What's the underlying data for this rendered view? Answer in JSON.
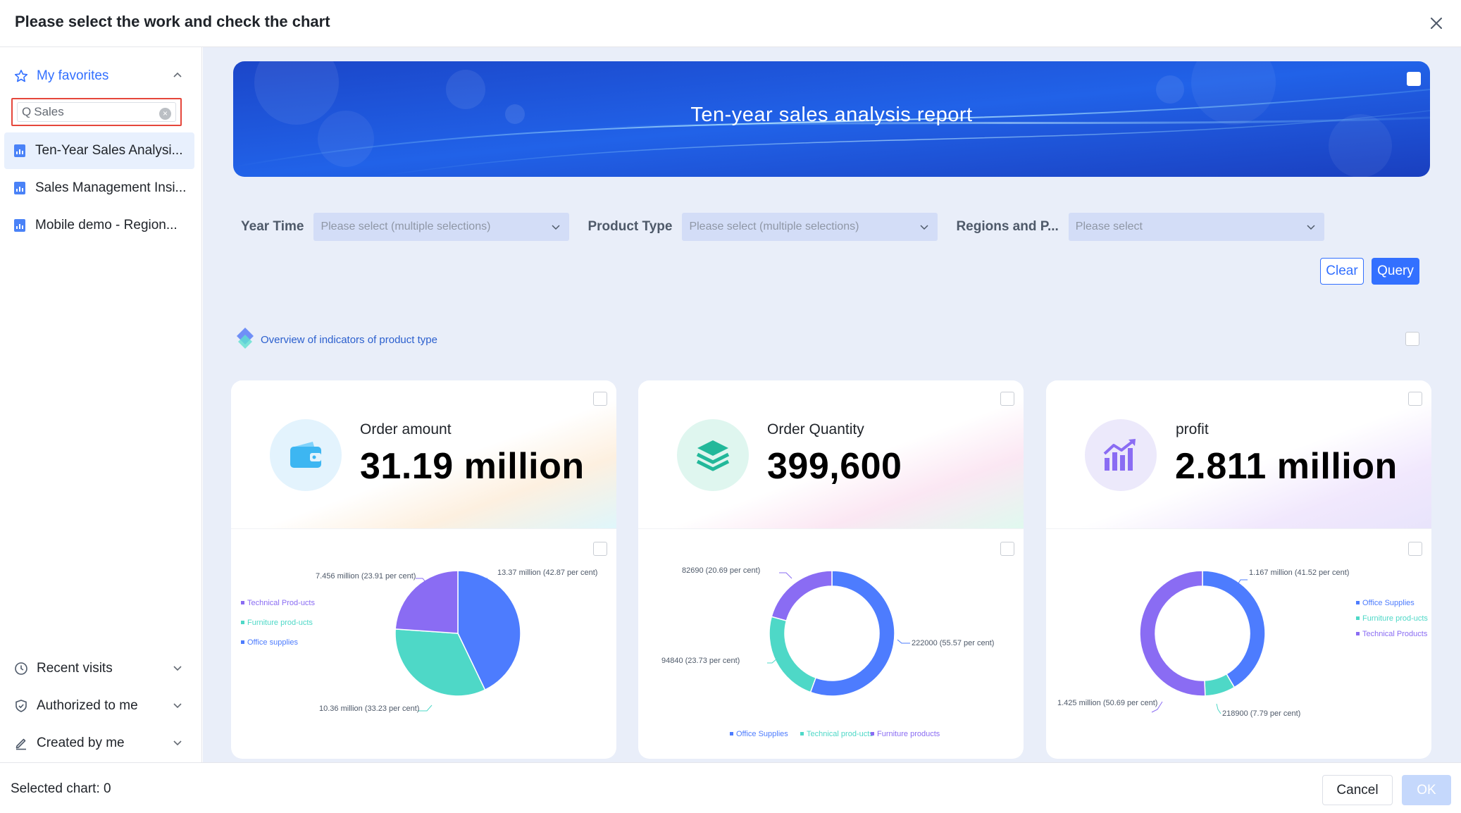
{
  "dialog": {
    "title": "Please select the work and check the chart",
    "close_icon": "close-icon"
  },
  "sidebar": {
    "favorites_label": "My favorites",
    "search": {
      "value": "Sales",
      "prefix": "Q"
    },
    "works": [
      {
        "label": "Ten-Year Sales Analysi...",
        "active": true
      },
      {
        "label": "Sales Management Insi...",
        "active": false
      },
      {
        "label": "Mobile demo - Region...",
        "active": false
      }
    ],
    "nav": [
      {
        "label": "Recent visits",
        "icon": "clock-icon"
      },
      {
        "label": "Authorized to me",
        "icon": "shield-icon"
      },
      {
        "label": "Created by me",
        "icon": "pen-icon"
      }
    ]
  },
  "banner": {
    "title": "Ten-year sales analysis report"
  },
  "filters": [
    {
      "label": "Year Time",
      "placeholder": "Please select (multiple selections)"
    },
    {
      "label": "Product Type",
      "placeholder": "Please select (multiple selections)"
    },
    {
      "label": "Regions and P...",
      "placeholder": "Please select"
    }
  ],
  "buttons": {
    "clear": "Clear",
    "query": "Query"
  },
  "section": {
    "title": "Overview of indicators of product type"
  },
  "cards": [
    {
      "label": "Order amount",
      "value": "31.19 million",
      "icon": "wallet-icon",
      "chart_data": {
        "type": "pie",
        "slices": [
          {
            "name": "Office supplies",
            "value": 13.37,
            "label": "13.37 million (42.87 per cent)",
            "color": "#4d7cfe"
          },
          {
            "name": "Furniture products",
            "value": 10.36,
            "label": "10.36 million (33.23 per cent)",
            "color": "#4ed8c7"
          },
          {
            "name": "Technical Products",
            "value": 7.456,
            "label": "7.456 million (23.91 per cent)",
            "color": "#8a6cf3"
          }
        ],
        "legend": [
          "Technical Prod-ucts",
          "Furniture prod-ucts",
          "Office supplies"
        ],
        "legend_position": "left"
      }
    },
    {
      "label": "Order Quantity",
      "value": "399,600",
      "icon": "layers-icon",
      "chart_data": {
        "type": "pie",
        "slices": [
          {
            "name": "Office Supplies",
            "value": 222000,
            "label": "222000 (55.57 per cent)",
            "color": "#4d7cfe"
          },
          {
            "name": "Technical products",
            "value": 94840,
            "label": "94840 (23.73 per cent)",
            "color": "#4ed8c7"
          },
          {
            "name": "Furniture products",
            "value": 82690,
            "label": "82690 (20.69 per cent)",
            "color": "#8a6cf3"
          }
        ],
        "legend": [
          "Office Supplies",
          "Technical prod-ucts",
          "Furniture products"
        ],
        "legend_position": "bottom"
      }
    },
    {
      "label": "profit",
      "value": "2.811 million",
      "icon": "bar-chart-icon",
      "chart_data": {
        "type": "pie",
        "slices": [
          {
            "name": "Office Supplies",
            "value": 1.167,
            "label": "1.167 million (41.52 per cent)",
            "color": "#4d7cfe"
          },
          {
            "name": "Furniture products",
            "value": 0.2189,
            "label": "218900 (7.79 per cent)",
            "color": "#4ed8c7"
          },
          {
            "name": "Technical Products",
            "value": 1.425,
            "label": "1.425 million (50.69 per cent)",
            "color": "#8a6cf3"
          }
        ],
        "legend": [
          "Office Supplies",
          "Furniture prod-ucts",
          "Technical Products"
        ],
        "legend_position": "right"
      }
    }
  ],
  "footer": {
    "selected": "Selected chart: 0",
    "cancel": "Cancel",
    "ok": "OK"
  }
}
